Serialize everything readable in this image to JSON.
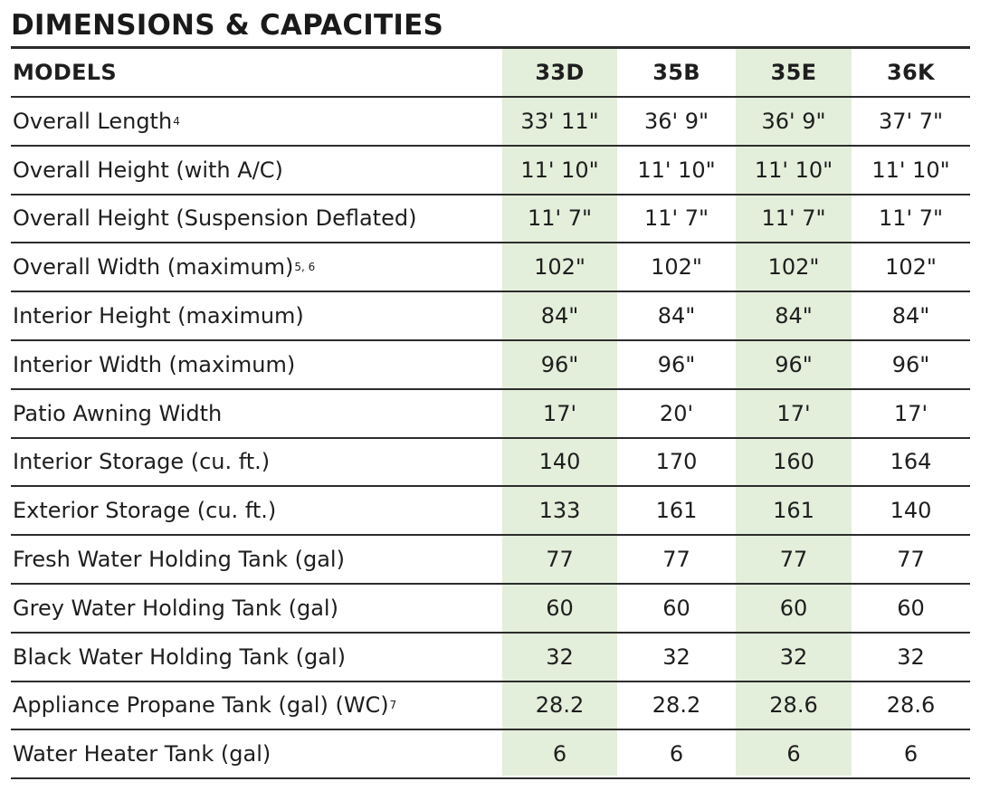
{
  "title": "DIMENSIONS & CAPACITIES",
  "header": {
    "label": "MODELS",
    "models": [
      "33D",
      "35B",
      "35E",
      "36K"
    ]
  },
  "highlight_color": "#e3eedb",
  "rows": [
    {
      "label": "Overall Length",
      "sup": "4",
      "values": [
        "33' 11\"",
        "36' 9\"",
        "36' 9\"",
        "37' 7\""
      ]
    },
    {
      "label": "Overall Height (with A/C)",
      "sup": "",
      "values": [
        "11' 10\"",
        "11' 10\"",
        "11' 10\"",
        "11' 10\""
      ]
    },
    {
      "label": "Overall Height (Suspension Deflated)",
      "sup": "",
      "values": [
        "11' 7\"",
        "11' 7\"",
        "11' 7\"",
        "11' 7\""
      ]
    },
    {
      "label": "Overall Width (maximum)",
      "sup": "5, 6",
      "values": [
        "102\"",
        "102\"",
        "102\"",
        "102\""
      ]
    },
    {
      "label": "Interior Height (maximum)",
      "sup": "",
      "values": [
        "84\"",
        "84\"",
        "84\"",
        "84\""
      ]
    },
    {
      "label": "Interior Width (maximum)",
      "sup": "",
      "values": [
        "96\"",
        "96\"",
        "96\"",
        "96\""
      ]
    },
    {
      "label": "Patio Awning Width",
      "sup": "",
      "values": [
        "17'",
        "20'",
        "17'",
        "17'"
      ]
    },
    {
      "label": "Interior Storage (cu. ft.)",
      "sup": "",
      "values": [
        "140",
        "170",
        "160",
        "164"
      ]
    },
    {
      "label": "Exterior Storage (cu. ft.)",
      "sup": "",
      "values": [
        "133",
        "161",
        "161",
        "140"
      ]
    },
    {
      "label": "Fresh Water Holding Tank (gal)",
      "sup": "",
      "values": [
        "77",
        "77",
        "77",
        "77"
      ]
    },
    {
      "label": "Grey Water Holding Tank (gal)",
      "sup": "",
      "values": [
        "60",
        "60",
        "60",
        "60"
      ]
    },
    {
      "label": "Black Water Holding Tank (gal)",
      "sup": "",
      "values": [
        "32",
        "32",
        "32",
        "32"
      ]
    },
    {
      "label": "Appliance Propane Tank (gal) (WC)",
      "sup": "7",
      "values": [
        "28.2",
        "28.2",
        "28.6",
        "28.6"
      ]
    },
    {
      "label": "Water Heater Tank (gal)",
      "sup": "",
      "values": [
        "6",
        "6",
        "6",
        "6"
      ]
    }
  ]
}
